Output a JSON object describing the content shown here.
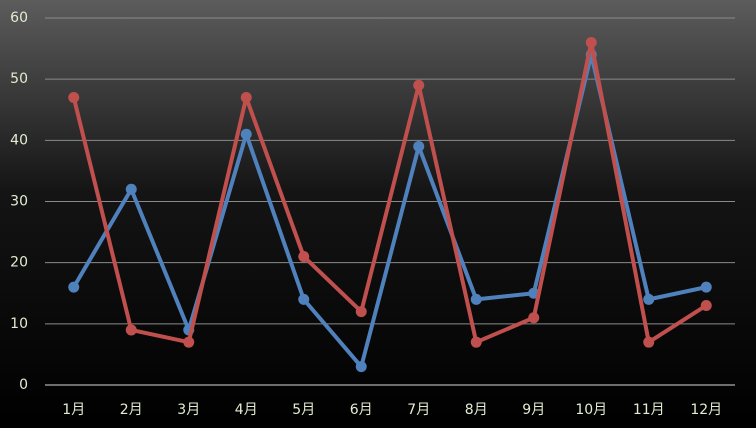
{
  "chart_data": {
    "type": "line",
    "categories": [
      "1月",
      "2月",
      "3月",
      "4月",
      "5月",
      "6月",
      "7月",
      "8月",
      "9月",
      "10月",
      "11月",
      "12月"
    ],
    "series": [
      {
        "color": "#4f81bd",
        "values": [
          16,
          32,
          9,
          41,
          14,
          3,
          39,
          14,
          15,
          54,
          14,
          16
        ]
      },
      {
        "color": "#c0504d",
        "values": [
          47,
          9,
          7,
          47,
          21,
          12,
          49,
          7,
          11,
          56,
          7,
          13
        ]
      }
    ],
    "ylim": [
      0,
      60
    ],
    "yticks": [
      0,
      10,
      20,
      30,
      40,
      50,
      60
    ],
    "grid": true
  }
}
